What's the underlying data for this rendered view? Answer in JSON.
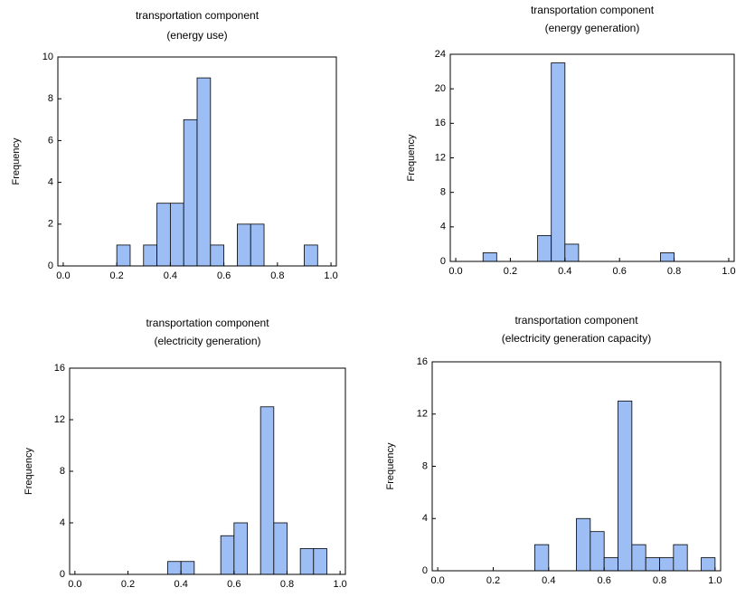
{
  "chart_data": [
    {
      "type": "histogram",
      "title": "transportation component",
      "subtitle": "(energy use)",
      "ylabel": "Frequency",
      "color": "#9dbef5",
      "bins": [
        0.2,
        0.25,
        0.3,
        0.35,
        0.4,
        0.45,
        0.5,
        0.55,
        0.6,
        0.65,
        0.7,
        0.75,
        0.8,
        0.85,
        0.9,
        0.95
      ],
      "values": [
        1,
        0,
        1,
        3,
        3,
        7,
        9,
        1,
        0,
        2,
        2,
        0,
        0,
        0,
        1
      ],
      "xlim": [
        -0.02,
        1.02
      ],
      "xticks": [
        {
          "value": 0,
          "label": "0.0"
        },
        0.2,
        0.4,
        0.6,
        0.8,
        {
          "value": 1,
          "label": "1.0"
        }
      ],
      "ylim": [
        0,
        10
      ],
      "yticks": [
        0,
        2,
        4,
        6,
        8,
        10
      ]
    },
    {
      "type": "histogram",
      "title": "transportation component",
      "subtitle": "(energy generation)",
      "ylabel": "Frequency",
      "color": "#9dbef5",
      "bins": [
        0.1,
        0.15,
        0.2,
        0.25,
        0.3,
        0.35,
        0.4,
        0.45,
        0.5,
        0.55,
        0.6,
        0.65,
        0.7,
        0.75,
        0.8
      ],
      "values": [
        1,
        0,
        0,
        0,
        3,
        23,
        2,
        0,
        0,
        0,
        0,
        0,
        0,
        1
      ],
      "xlim": [
        -0.02,
        1.02
      ],
      "xticks": [
        {
          "value": 0,
          "label": "0.0"
        },
        0.2,
        0.4,
        0.6,
        0.8,
        {
          "value": 1,
          "label": "1.0"
        }
      ],
      "ylim": [
        0,
        24
      ],
      "yticks": [
        0,
        4,
        8,
        12,
        16,
        20,
        24
      ]
    },
    {
      "type": "histogram",
      "title": "transportation component",
      "subtitle": "(electricity generation)",
      "ylabel": "Frequency",
      "color": "#9dbef5",
      "bins": [
        0.35,
        0.4,
        0.45,
        0.5,
        0.55,
        0.6,
        0.65,
        0.7,
        0.75,
        0.8,
        0.85,
        0.9,
        0.95
      ],
      "values": [
        1,
        1,
        0,
        0,
        3,
        4,
        0,
        13,
        4,
        0,
        2,
        2
      ],
      "xlim": [
        -0.02,
        1.02
      ],
      "xticks": [
        {
          "value": 0,
          "label": "0.0"
        },
        0.2,
        0.4,
        0.6,
        0.8,
        {
          "value": 1,
          "label": "1.0"
        }
      ],
      "ylim": [
        0,
        16
      ],
      "yticks": [
        0,
        4,
        8,
        12,
        16
      ]
    },
    {
      "type": "histogram",
      "title": "transportation component",
      "subtitle": "(electricity generation capacity)",
      "ylabel": "Frequency",
      "color": "#9dbef5",
      "bins": [
        0.35,
        0.4,
        0.45,
        0.5,
        0.55,
        0.6,
        0.65,
        0.7,
        0.75,
        0.8,
        0.85,
        0.9,
        0.95,
        1.0
      ],
      "values": [
        2,
        0,
        0,
        4,
        3,
        1,
        13,
        2,
        1,
        1,
        2,
        0,
        1
      ],
      "xlim": [
        -0.02,
        1.02
      ],
      "xticks": [
        {
          "value": 0,
          "label": "0.0"
        },
        0.2,
        0.4,
        0.6,
        0.8,
        {
          "value": 1,
          "label": "1.0"
        }
      ],
      "ylim": [
        0,
        16
      ],
      "yticks": [
        0,
        4,
        8,
        12,
        16
      ]
    }
  ]
}
